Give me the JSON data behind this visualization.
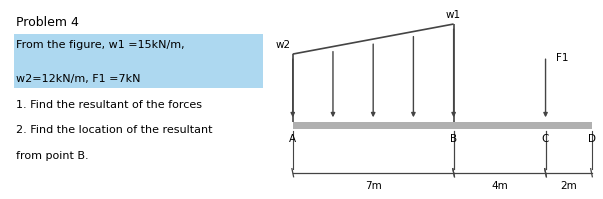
{
  "title": "Problem 4",
  "hl_line1": "From the figure, w1 =15kN/m,",
  "hl_line2": "w2=12kN/m, F1 =7kN",
  "text_line1": "1. Find the resultant of the forces",
  "text_line2": "2. Find the location of the resultant",
  "text_line3": "from point B.",
  "highlight_color": "#add8f0",
  "beam_color": "#b0b0b0",
  "line_color": "#444444",
  "background_color": "#ffffff",
  "A": 0.0,
  "B": 7.0,
  "C": 11.0,
  "D": 13.0,
  "w1_label": "w1",
  "w2_label": "w2",
  "F1_label": "F1",
  "dim_labels": [
    "7m",
    "4m",
    "2m"
  ],
  "font": "DejaVu Sans",
  "text_fontsize": 8.0,
  "title_fontsize": 9.0,
  "diagram_fontsize": 7.5
}
